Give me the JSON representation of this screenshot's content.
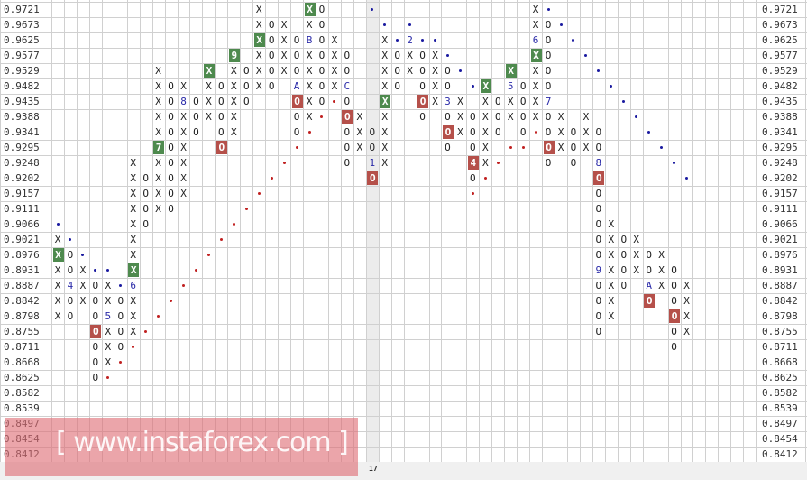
{
  "chart_data": {
    "type": "point-and-figure",
    "price_levels": [
      "0.9721",
      "0.9673",
      "0.9625",
      "0.9577",
      "0.9529",
      "0.9482",
      "0.9435",
      "0.9388",
      "0.9341",
      "0.9295",
      "0.9248",
      "0.9202",
      "0.9157",
      "0.9111",
      "0.9066",
      "0.9021",
      "0.8976",
      "0.8931",
      "0.8887",
      "0.8842",
      "0.8798",
      "0.8755",
      "0.8711",
      "0.8668",
      "0.8625",
      "0.8582",
      "0.8539",
      "0.8497",
      "0.8454",
      "0.8412"
    ],
    "cell_codes": {
      ".": "empty",
      "X": "X box",
      "O": "O box",
      "*": "blue trend dot",
      "+": "red trend dot",
      "x": "highlighted X (green)",
      "o": "highlighted O (red)",
      "n": "highlighted month 9 (green)",
      "s": "highlighted month 7 (green)",
      "f": "highlighted month 4 (red)",
      "1-9,A,B,C": "month marker"
    },
    "rows": [
      "................X...xO...*............X*",
      "................XOX.XO....*.*.........XO*",
      "................xOXOBOX...X*2**.......6O.*",
      "..............n.XOXOXOXO..XOXOX*......xO..*",
      "........X...x.XOXOXOXOXO..XOXOXO*...x.XO...*",
      "........XOX.XOXOXO.AXOXC..XO.OXO.*x.5OXO....*",
      "........XO8OXOXO...oXO+O..x..oX3X.XOXOX7.....*",
      "........XOXOXOX....OX+.oX.X..O.OXOXOXOXOX.X...*",
      "........XOXO.OX....O+..OXOX....oXOXO.O+OXOXO...*",
      "........sOX..o.....+...OXOX....O.OX.++.oXOXO....*",
      "......X.XOX.......+....O.1X......fX+...O.O.8.....*",
      "......XOXOX......+.......o.......O+........o......*",
      "......XOXOX.....+................+.........O",
      "......XOXO.....+...........................O",
      "*.....XO......+............................OX",
      "X*....X......+.............................OXOX",
      "xO*...X.....+..............................OXOXOX",
      "XOX**.x....+...............................9XOXOXO",
      "X4XOX*6...+................................OXO.AXOX",
      "XOXOXOX..+.................................OX..o.OX",
      "XO.O5OX.+..................................OX....oX",
      "...oXOX+...................................O.....OX",
      "...OXO+..........................................O",
      "...OX+",
      "...O+",
      "",
      "",
      "",
      "",
      ""
    ],
    "column_count": 56,
    "highlight_column_label": "17",
    "colors": {
      "green_box": "#4e8a4e",
      "red_box": "#b5504a",
      "month_label": "#2a2aa8",
      "blue_dot": "#1a1aa0",
      "red_dot": "#c02020",
      "grid": "#d0d0d0"
    }
  },
  "watermark": "[ www.instaforex.com ]"
}
